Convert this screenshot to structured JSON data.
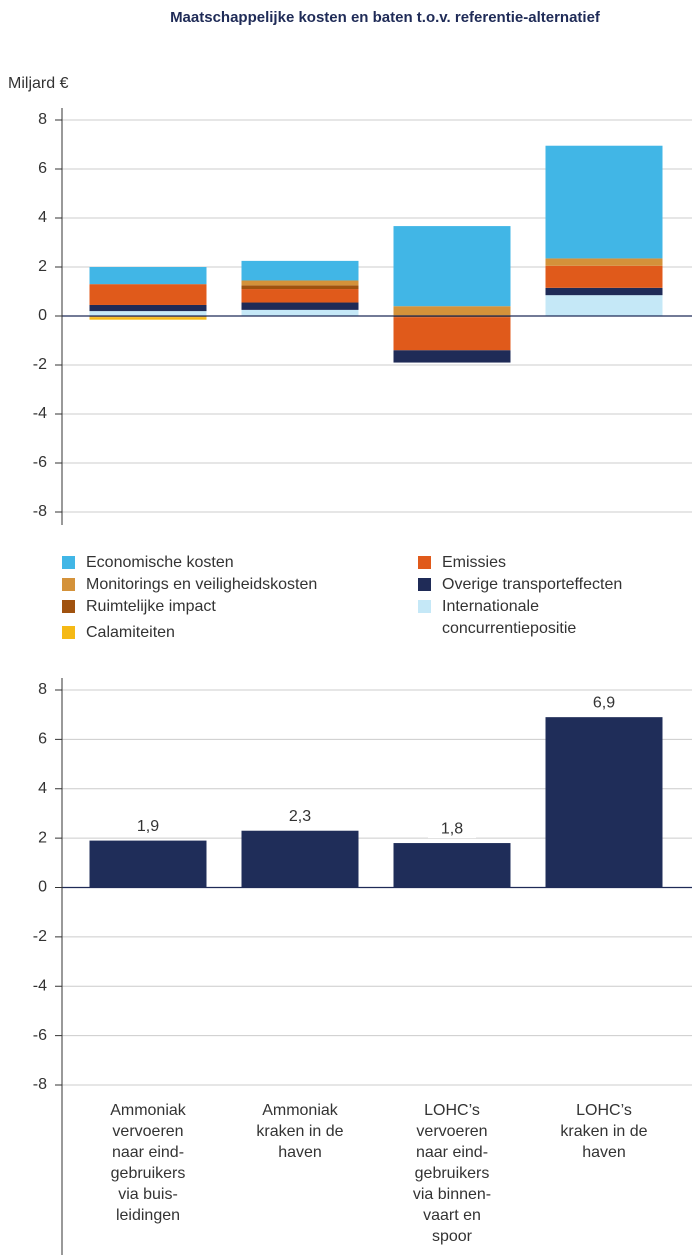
{
  "chart_data": [
    {
      "type": "bar",
      "stacked": true,
      "title": "Maatschappelijke kosten en baten t.o.v. referentie-alternatief",
      "y_label": "Miljard €",
      "ylim": [
        -8,
        8
      ],
      "yticks": [
        -8,
        -6,
        -4,
        -2,
        0,
        2,
        4,
        6,
        8
      ],
      "grid": true,
      "series": [
        {
          "name": "Economische kosten",
          "color": "#41b6e6",
          "values": [
            0.7,
            0.8,
            3.27,
            4.6
          ]
        },
        {
          "name": "Emissies",
          "color": "#e05a1b",
          "values": [
            0.85,
            0.55,
            -1.35,
            0.9
          ]
        },
        {
          "name": "Monitorings en veiligheidskosten",
          "color": "#d4923a",
          "values": [
            -0.05,
            0.2,
            0.4,
            0.3
          ]
        },
        {
          "name": "Overige transporteffecten",
          "color": "#1f2b57",
          "values": [
            0.25,
            0.3,
            -0.5,
            0.3
          ]
        },
        {
          "name": "Ruimtelijke impact",
          "color": "#a0520f",
          "values": [
            0,
            0.15,
            -0.05,
            0
          ]
        },
        {
          "name": "Internationale concurrentiepositie",
          "color": "#c5e8f7",
          "values": [
            0.2,
            0.25,
            0,
            0.85
          ]
        },
        {
          "name": "Calamiteiten",
          "color": "#f5b915",
          "values": [
            -0.1,
            0,
            0,
            0
          ]
        }
      ]
    },
    {
      "type": "bar",
      "categories": [
        "Ammoniak\nvervoeren\nnaar eind-\ngebruikers\nvia buis-\nleidingen",
        "Ammoniak\nkraken in de\nhaven",
        "LOHC’s\nvervoeren\nnaar eind-\ngebruikers\nvia binnen-\nvaart en\nspoor",
        "LOHC’s\nkraken in de\nhaven"
      ],
      "values": [
        1.9,
        2.3,
        1.8,
        6.9
      ],
      "value_labels": [
        "1,9",
        "2,3",
        "1,8",
        "6,9"
      ],
      "color": "#1f2d59",
      "ylim": [
        -8,
        8
      ],
      "yticks": [
        -8,
        -6,
        -4,
        -2,
        0,
        2,
        4,
        6,
        8
      ],
      "grid": true
    }
  ]
}
